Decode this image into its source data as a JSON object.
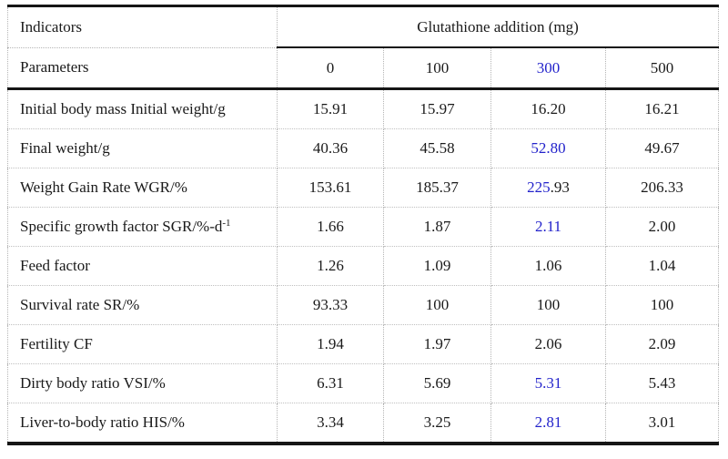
{
  "table": {
    "header": {
      "indicators_label": "Indicators",
      "parameters_label": "Parameters",
      "group_label": "Glutathione addition (mg)",
      "doses": [
        "0",
        "100",
        {
          "text": "300",
          "blue": true
        },
        "500"
      ]
    },
    "rows": [
      {
        "label": "Initial body mass Initial weight/g",
        "values": [
          "15.91",
          "15.97",
          "16.20",
          "16.21"
        ]
      },
      {
        "label": "Final weight/g",
        "values": [
          "40.36",
          "45.58",
          {
            "text": "52.80",
            "blue": true
          },
          "49.67"
        ]
      },
      {
        "label": "Weight Gain Rate WGR/%",
        "values": [
          "153.61",
          "185.37",
          [
            {
              "text": "225",
              "blue": true
            },
            {
              "text": ".93"
            }
          ],
          "206.33"
        ]
      },
      {
        "label": [
          {
            "text": "Specific growth factor SGR/%-d"
          },
          {
            "text": "-1",
            "sup": true
          }
        ],
        "values": [
          "1.66",
          "1.87",
          {
            "text": "2.11",
            "blue": true
          },
          "2.00"
        ]
      },
      {
        "label": "Feed factor",
        "values": [
          "1.26",
          "1.09",
          "1.06",
          "1.04"
        ]
      },
      {
        "label": "Survival rate SR/%",
        "values": [
          "93.33",
          "100",
          "100",
          "100"
        ]
      },
      {
        "label": "Fertility CF",
        "values": [
          "1.94",
          "1.97",
          "2.06",
          "2.09"
        ]
      },
      {
        "label": "Dirty body ratio VSI/%",
        "values": [
          "6.31",
          "5.69",
          {
            "text": "5.31",
            "blue": true
          },
          "5.43"
        ]
      },
      {
        "label": "Liver-to-body ratio HIS/%",
        "values": [
          "3.34",
          "3.25",
          {
            "text": "2.81",
            "blue": true
          },
          "3.01"
        ]
      }
    ],
    "colors": {
      "highlight_blue": "#2323cb",
      "text": "#1a1a1a",
      "thick_rule": "#161616",
      "dotted_grid": "#b5b5b5"
    }
  }
}
